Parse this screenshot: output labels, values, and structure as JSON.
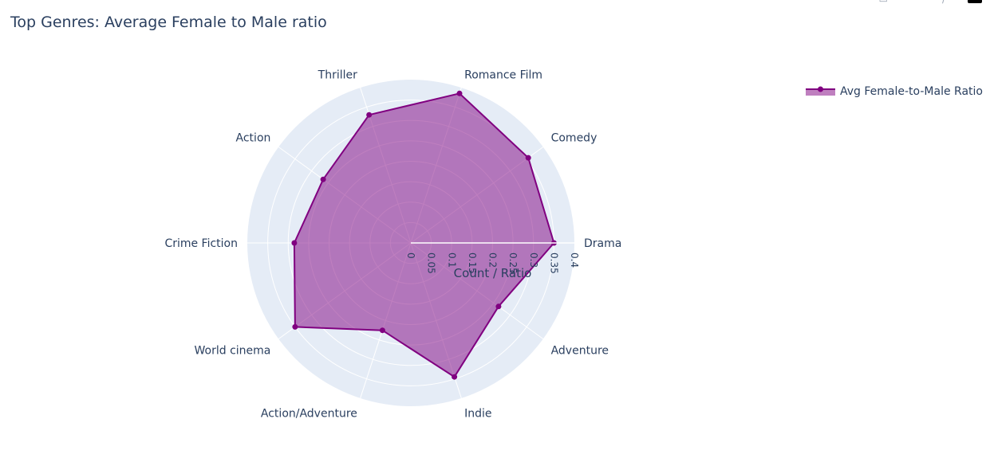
{
  "title": "Top Genres: Average Female to Male ratio",
  "chart_data": {
    "type": "radar",
    "title": "Top Genres: Average Female to Male ratio",
    "radial_axis_title": "Count / Ratio",
    "radial_range": [
      0,
      0.4
    ],
    "radial_ticks": [
      "0",
      "0.05",
      "0.1",
      "0.15",
      "0.2",
      "0.25",
      "0.3",
      "0.35",
      "0.4"
    ],
    "grid": true,
    "legend_position": "top-right",
    "categories": [
      "Drama",
      "Comedy",
      "Romance Film",
      "Thriller",
      "Action",
      "Crime Fiction",
      "World cinema",
      "Action/Adventure",
      "Indie",
      "Adventure"
    ],
    "series": [
      {
        "name": "Avg Female-to-Male Ratio",
        "values": [
          0.35,
          0.355,
          0.385,
          0.33,
          0.265,
          0.285,
          0.35,
          0.225,
          0.345,
          0.265
        ],
        "color": "#800080",
        "fill": "toself"
      }
    ]
  },
  "colors": {
    "polar_background": "#e5ecf6",
    "grid": "#ffffff",
    "text": "#2a3f5f",
    "series": "#800080"
  }
}
